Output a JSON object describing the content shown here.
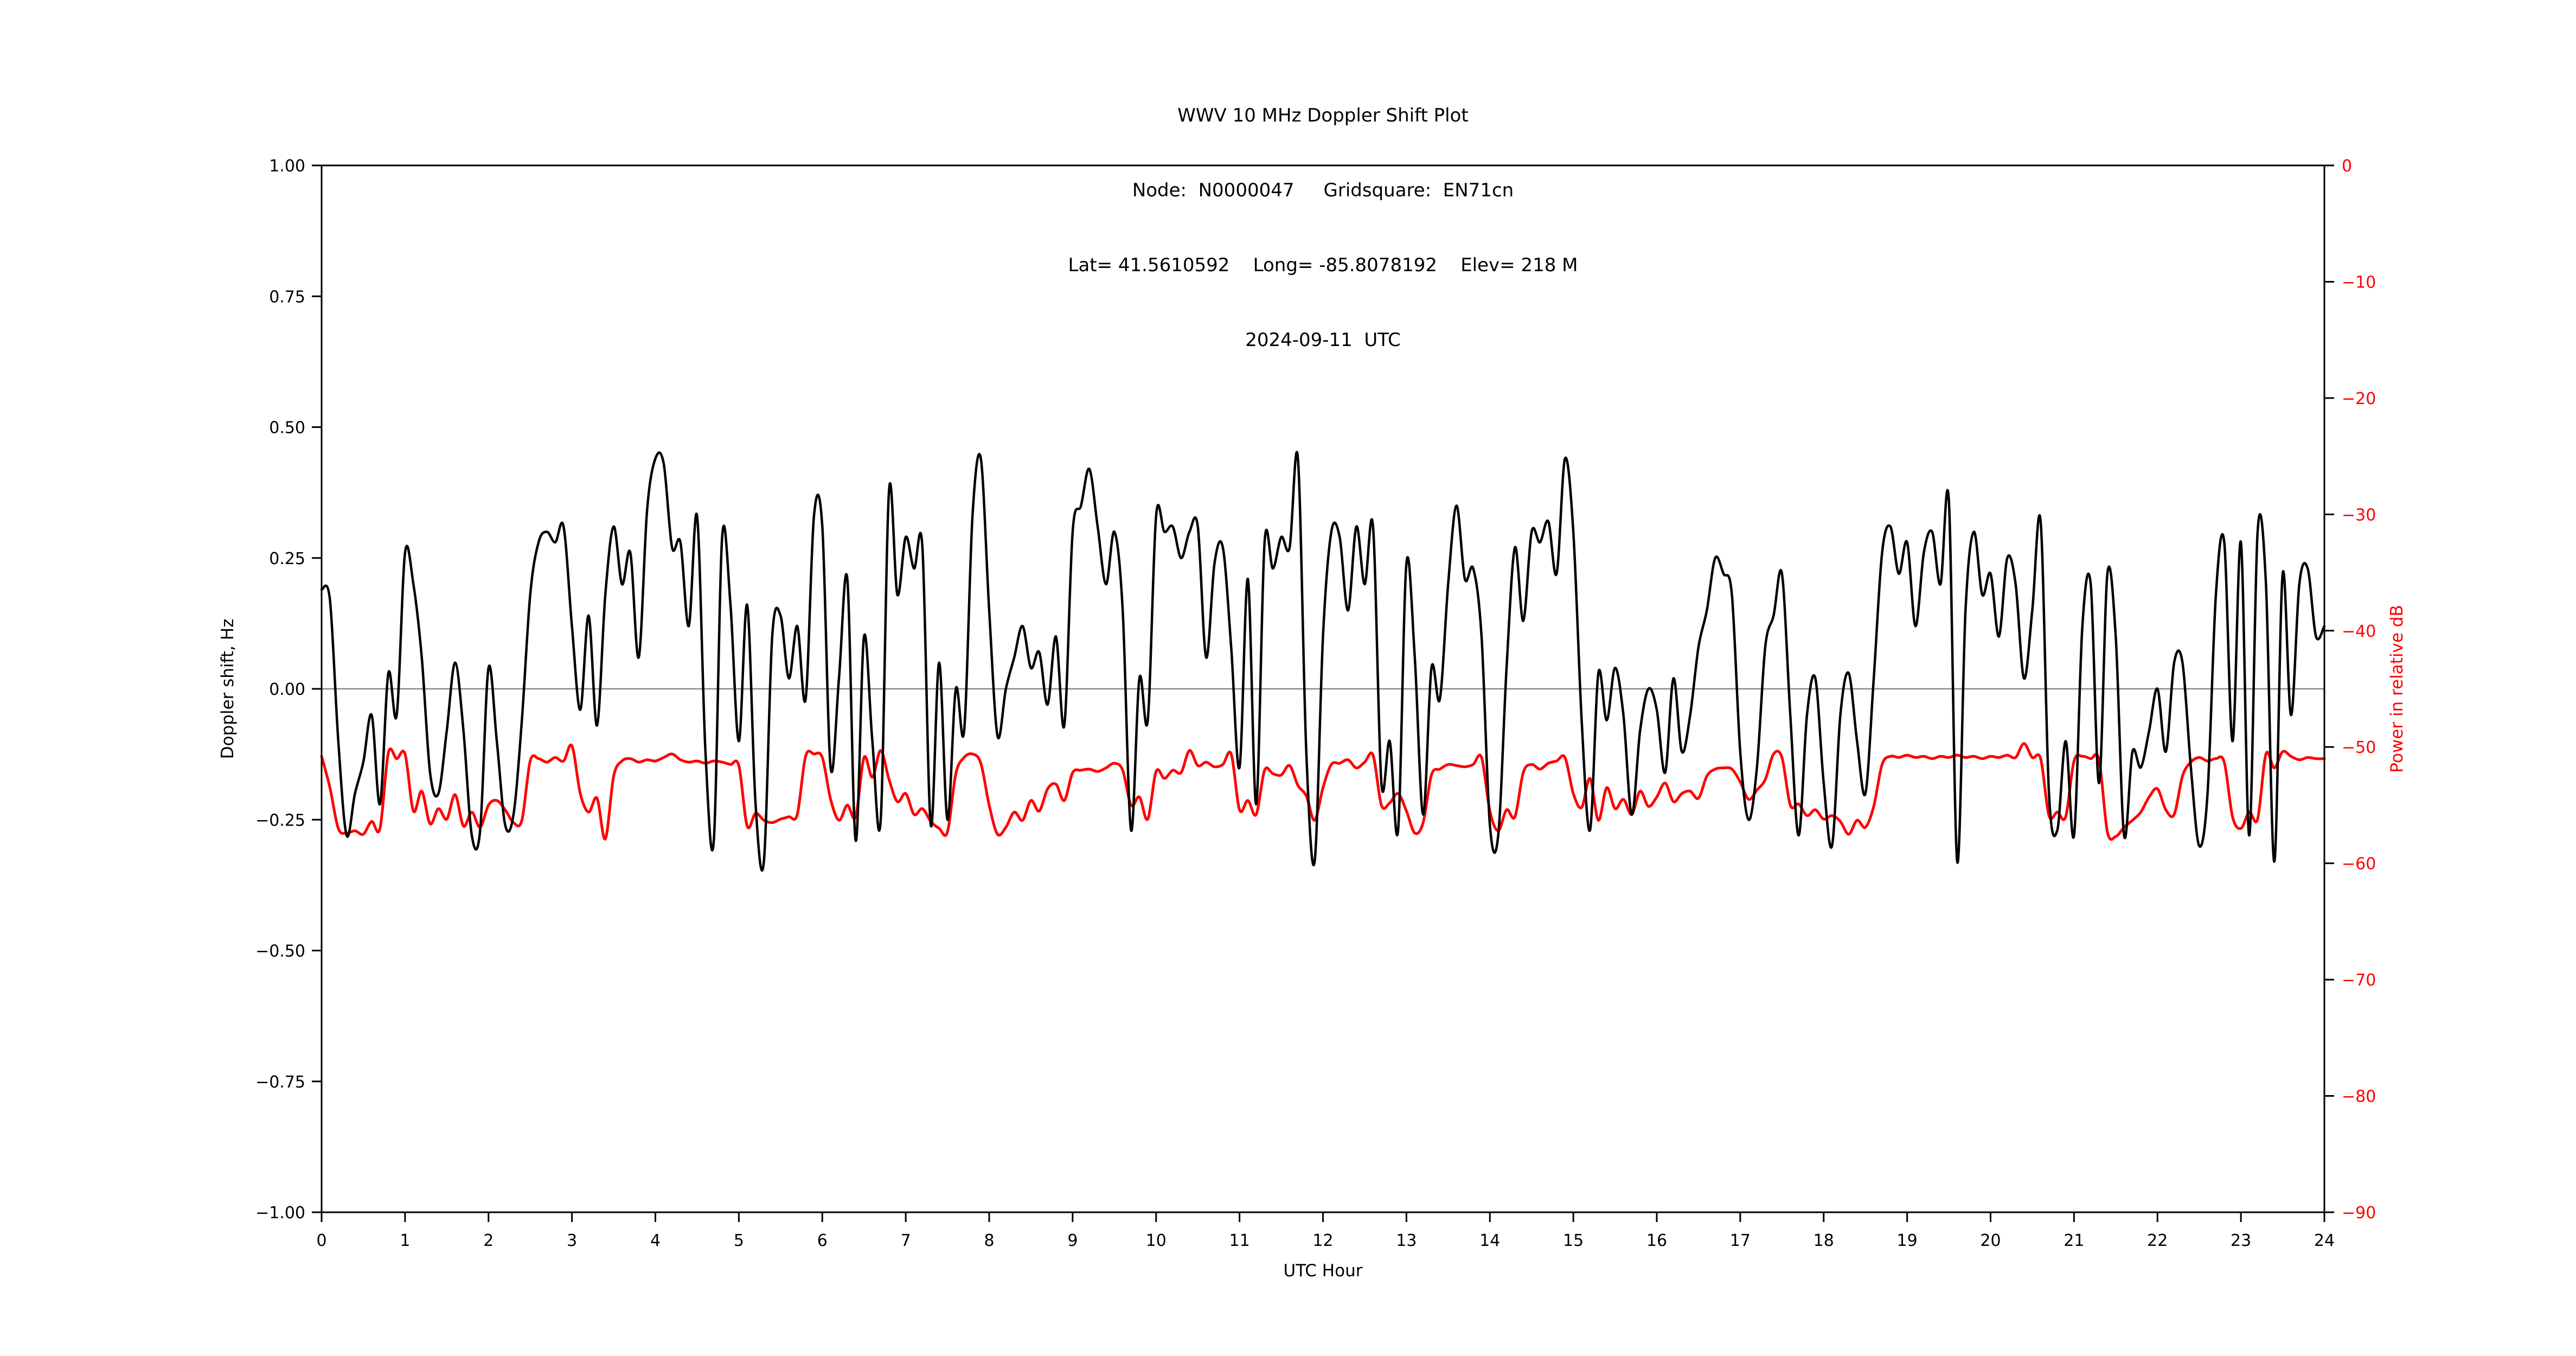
{
  "station": {
    "node": "N0000047",
    "gridsquare": "EN71cn",
    "lat": "41.5610592",
    "long": "-85.8078192",
    "elev": "218 M",
    "date": "2024-09-11",
    "timezone": "UTC"
  },
  "colors": {
    "doppler_line": "#000000",
    "power_line": "#ff0000",
    "right_axis_label": "#ff0000",
    "zero_line": "#888888",
    "spine": "#000000",
    "background": "#ffffff"
  },
  "chart_data": {
    "type": "line",
    "title_lines": [
      "WWV 10 MHz Doppler Shift Plot",
      "Node:  N0000047     Gridsquare:  EN71cn",
      "Lat= 41.5610592    Long= -85.8078192    Elev= 218 M",
      "2024-09-11  UTC"
    ],
    "xlabel": "UTC Hour",
    "ylabel_left": "Doppler shift, Hz",
    "ylabel_right": "Power in relative dB",
    "xlim": [
      0,
      24
    ],
    "ylim_left": [
      -1.0,
      1.0
    ],
    "ylim_right": [
      -90,
      0
    ],
    "x_ticks": [
      0,
      1,
      2,
      3,
      4,
      5,
      6,
      7,
      8,
      9,
      10,
      11,
      12,
      13,
      14,
      15,
      16,
      17,
      18,
      19,
      20,
      21,
      22,
      23,
      24
    ],
    "y_left_tick_labels": [
      "1.00",
      "0.75",
      "0.50",
      "0.25",
      "0.00",
      "−0.25",
      "−0.50",
      "−0.75",
      "−1.00"
    ],
    "y_left_tick_values": [
      1.0,
      0.75,
      0.5,
      0.25,
      0.0,
      -0.25,
      -0.5,
      -0.75,
      -1.0
    ],
    "y_right_tick_labels": [
      "0",
      "−10",
      "−20",
      "−30",
      "−40",
      "−50",
      "−60",
      "−70",
      "−80",
      "−90"
    ],
    "y_right_tick_values": [
      0,
      -10,
      -20,
      -30,
      -40,
      -50,
      -60,
      -70,
      -80,
      -90
    ],
    "zero_line": true,
    "grid": false,
    "legend": "none",
    "series": [
      {
        "name": "doppler_shift_hz",
        "axis": "left",
        "color": "#000000",
        "width": 4.5,
        "x_start": 0,
        "x_step": 0.1,
        "values": [
          0.19,
          0.17,
          -0.1,
          -0.28,
          -0.2,
          -0.14,
          -0.05,
          -0.22,
          0.03,
          -0.05,
          0.26,
          0.2,
          0.06,
          -0.16,
          -0.2,
          -0.08,
          0.05,
          -0.08,
          -0.28,
          -0.27,
          0.04,
          -0.1,
          -0.26,
          -0.24,
          -0.06,
          0.18,
          0.28,
          0.3,
          0.28,
          0.31,
          0.12,
          -0.04,
          0.14,
          -0.07,
          0.18,
          0.31,
          0.2,
          0.26,
          0.06,
          0.34,
          0.44,
          0.43,
          0.27,
          0.28,
          0.12,
          0.33,
          -0.12,
          -0.29,
          0.29,
          0.16,
          -0.1,
          0.16,
          -0.22,
          -0.33,
          0.1,
          0.14,
          0.02,
          0.12,
          -0.02,
          0.33,
          0.31,
          -0.15,
          0.02,
          0.21,
          -0.29,
          0.1,
          -0.1,
          -0.25,
          0.38,
          0.18,
          0.29,
          0.23,
          0.27,
          -0.26,
          0.05,
          -0.25,
          0.0,
          -0.08,
          0.33,
          0.44,
          0.15,
          -0.09,
          0.0,
          0.06,
          0.12,
          0.04,
          0.07,
          -0.03,
          0.1,
          -0.07,
          0.3,
          0.35,
          0.42,
          0.31,
          0.2,
          0.3,
          0.15,
          -0.27,
          0.02,
          -0.06,
          0.33,
          0.3,
          0.31,
          0.25,
          0.3,
          0.31,
          0.06,
          0.24,
          0.27,
          0.08,
          -0.15,
          0.21,
          -0.22,
          0.28,
          0.23,
          0.29,
          0.27,
          0.44,
          -0.12,
          -0.33,
          0.1,
          0.3,
          0.29,
          0.15,
          0.31,
          0.2,
          0.31,
          -0.18,
          -0.1,
          -0.27,
          0.24,
          0.06,
          -0.24,
          0.04,
          -0.02,
          0.2,
          0.35,
          0.21,
          0.23,
          0.1,
          -0.26,
          -0.28,
          0.04,
          0.27,
          0.13,
          0.3,
          0.28,
          0.32,
          0.22,
          0.44,
          0.3,
          -0.06,
          -0.27,
          0.03,
          -0.06,
          0.04,
          -0.05,
          -0.24,
          -0.08,
          0.0,
          -0.04,
          -0.16,
          0.02,
          -0.12,
          -0.05,
          0.08,
          0.15,
          0.25,
          0.22,
          0.18,
          -0.12,
          -0.25,
          -0.15,
          0.08,
          0.14,
          0.22,
          -0.05,
          -0.28,
          -0.05,
          0.02,
          -0.18,
          -0.3,
          -0.05,
          0.03,
          -0.1,
          -0.2,
          0.02,
          0.26,
          0.31,
          0.22,
          0.28,
          0.12,
          0.26,
          0.3,
          0.2,
          0.36,
          -0.33,
          0.15,
          0.3,
          0.18,
          0.22,
          0.1,
          0.25,
          0.2,
          0.02,
          0.15,
          0.32,
          -0.2,
          -0.27,
          -0.1,
          -0.28,
          0.12,
          0.2,
          -0.18,
          0.22,
          0.1,
          -0.28,
          -0.12,
          -0.15,
          -0.08,
          0.0,
          -0.12,
          0.05,
          0.05,
          -0.15,
          -0.3,
          -0.2,
          0.18,
          0.28,
          -0.1,
          0.28,
          -0.28,
          0.3,
          0.2,
          -0.33,
          0.22,
          -0.05,
          0.2,
          0.23,
          0.1,
          0.12
        ]
      },
      {
        "name": "power_relative_db",
        "axis": "right",
        "color": "#ff0000",
        "width": 5,
        "x_start": 0,
        "x_step": 0.1,
        "values": [
          -50.8,
          -53.5,
          -57.0,
          -57.4,
          -57.2,
          -57.5,
          -56.4,
          -57.0,
          -50.5,
          -51.0,
          -50.6,
          -55.5,
          -53.8,
          -56.6,
          -55.3,
          -56.2,
          -54.1,
          -56.8,
          -55.6,
          -56.9,
          -55.0,
          -54.6,
          -55.4,
          -56.5,
          -56.3,
          -51.2,
          -51.0,
          -51.3,
          -50.9,
          -51.2,
          -49.9,
          -54.0,
          -55.6,
          -54.4,
          -57.9,
          -52.5,
          -51.2,
          -51.0,
          -51.3,
          -51.1,
          -51.2,
          -50.9,
          -50.6,
          -51.1,
          -51.3,
          -51.2,
          -51.4,
          -51.2,
          -51.3,
          -51.5,
          -51.6,
          -56.8,
          -55.7,
          -56.3,
          -56.5,
          -56.2,
          -56.0,
          -55.8,
          -50.8,
          -50.6,
          -50.9,
          -54.5,
          -56.3,
          -55.0,
          -56.0,
          -50.9,
          -52.6,
          -50.3,
          -52.8,
          -54.7,
          -54.0,
          -55.8,
          -55.3,
          -56.4,
          -57.0,
          -57.3,
          -52.3,
          -50.9,
          -50.6,
          -51.4,
          -55.0,
          -57.5,
          -56.9,
          -55.6,
          -56.3,
          -54.6,
          -55.5,
          -53.6,
          -53.2,
          -54.6,
          -52.2,
          -52.0,
          -51.9,
          -52.1,
          -51.8,
          -51.4,
          -52.0,
          -55.0,
          -54.3,
          -56.2,
          -52.1,
          -52.7,
          -52.0,
          -52.2,
          -50.3,
          -51.6,
          -51.3,
          -51.7,
          -51.5,
          -50.6,
          -55.4,
          -54.6,
          -55.8,
          -52.0,
          -52.3,
          -52.4,
          -51.6,
          -53.3,
          -54.2,
          -56.3,
          -53.5,
          -51.5,
          -51.4,
          -51.1,
          -51.8,
          -51.3,
          -50.7,
          -55.0,
          -54.8,
          -54.0,
          -55.5,
          -57.4,
          -56.5,
          -52.4,
          -51.9,
          -51.5,
          -51.6,
          -51.7,
          -51.5,
          -50.9,
          -55.5,
          -57.2,
          -55.4,
          -56.0,
          -52.2,
          -51.5,
          -51.9,
          -51.4,
          -51.2,
          -50.9,
          -54.0,
          -55.2,
          -52.7,
          -56.3,
          -53.5,
          -55.3,
          -54.5,
          -55.8,
          -53.8,
          -55.1,
          -54.3,
          -53.1,
          -54.7,
          -54.0,
          -53.8,
          -54.4,
          -52.5,
          -51.9,
          -51.8,
          -51.9,
          -53.0,
          -54.5,
          -53.7,
          -52.8,
          -50.6,
          -50.9,
          -55.0,
          -54.9,
          -55.9,
          -55.4,
          -56.2,
          -55.9,
          -56.4,
          -57.5,
          -56.3,
          -56.9,
          -55.1,
          -51.5,
          -50.8,
          -50.9,
          -50.7,
          -50.9,
          -50.8,
          -51.0,
          -50.8,
          -50.9,
          -50.7,
          -50.9,
          -50.8,
          -51.0,
          -50.8,
          -50.9,
          -50.7,
          -50.9,
          -49.7,
          -50.9,
          -51.0,
          -55.9,
          -55.6,
          -56.0,
          -51.2,
          -50.8,
          -51.0,
          -51.1,
          -57.3,
          -57.7,
          -56.9,
          -56.3,
          -55.6,
          -54.3,
          -53.6,
          -55.4,
          -55.8,
          -52.5,
          -51.3,
          -50.9,
          -51.2,
          -51.0,
          -51.3,
          -56.0,
          -57.0,
          -55.6,
          -56.2,
          -50.6,
          -51.8,
          -50.4,
          -50.8,
          -51.1,
          -50.9,
          -51.0,
          -51.0
        ]
      }
    ]
  }
}
